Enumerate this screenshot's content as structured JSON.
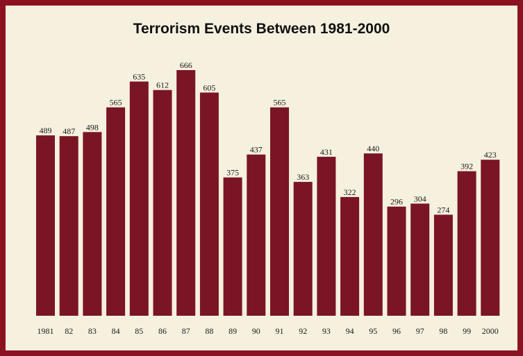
{
  "chart_data": {
    "type": "bar",
    "title": "Terrorism Events Between 1981-2000",
    "categories": [
      "1981",
      "82",
      "83",
      "84",
      "85",
      "86",
      "87",
      "88",
      "89",
      "90",
      "91",
      "92",
      "93",
      "94",
      "95",
      "96",
      "97",
      "98",
      "99",
      "2000"
    ],
    "values": [
      489,
      487,
      498,
      565,
      635,
      612,
      666,
      605,
      375,
      437,
      565,
      363,
      431,
      322,
      440,
      296,
      304,
      274,
      392,
      423
    ],
    "xlabel": "",
    "ylabel": "",
    "ylim": [
      0,
      720
    ],
    "grid": false,
    "colors": {
      "bar": "#7a1525",
      "background": "#f6f0df",
      "border": "#8b1220"
    }
  }
}
